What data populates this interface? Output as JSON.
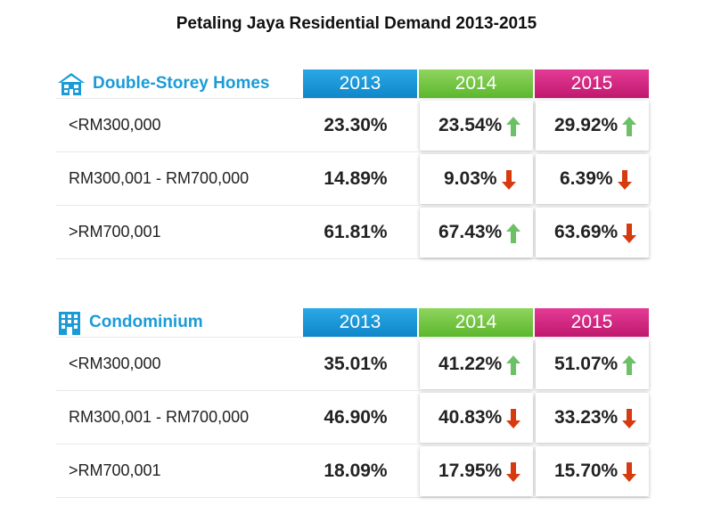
{
  "title": "Petaling Jaya Residential Demand 2013-2015",
  "colors": {
    "accent": "#1a9bd7",
    "year_2013": "#1a93d6",
    "year_2014": "#6cc13b",
    "year_2015": "#d32882",
    "up": "#6cc066",
    "down": "#d73a0f"
  },
  "sections": [
    {
      "label": "Double-Storey Homes",
      "icon": "house-icon",
      "years": [
        "2013",
        "2014",
        "2015"
      ],
      "rows": [
        {
          "label": "<RM300,000",
          "v2013": "23.30%",
          "v2014": "23.54%",
          "t2014": "up",
          "v2015": "29.92%",
          "t2015": "up"
        },
        {
          "label": "RM300,001 - RM700,000",
          "v2013": "14.89%",
          "v2014": "9.03%",
          "t2014": "down",
          "v2015": "6.39%",
          "t2015": "down"
        },
        {
          "label": ">RM700,001",
          "v2013": "61.81%",
          "v2014": "67.43%",
          "t2014": "up",
          "v2015": "63.69%",
          "t2015": "down"
        }
      ]
    },
    {
      "label": "Condominium",
      "icon": "building-icon",
      "years": [
        "2013",
        "2014",
        "2015"
      ],
      "rows": [
        {
          "label": "<RM300,000",
          "v2013": "35.01%",
          "v2014": "41.22%",
          "t2014": "up",
          "v2015": "51.07%",
          "t2015": "up"
        },
        {
          "label": "RM300,001 - RM700,000",
          "v2013": "46.90%",
          "v2014": "40.83%",
          "t2014": "down",
          "v2015": "33.23%",
          "t2015": "down"
        },
        {
          "label": ">RM700,001",
          "v2013": "18.09%",
          "v2014": "17.95%",
          "t2014": "down",
          "v2015": "15.70%",
          "t2015": "down"
        }
      ]
    }
  ],
  "chart_data": {
    "type": "table",
    "title": "Petaling Jaya Residential Demand 2013-2015",
    "columns": [
      "2013",
      "2014",
      "2015"
    ],
    "tables": [
      {
        "name": "Double-Storey Homes",
        "rows": [
          "<RM300,000",
          "RM300,001 - RM700,000",
          ">RM700,001"
        ],
        "values": [
          [
            23.3,
            23.54,
            29.92
          ],
          [
            14.89,
            9.03,
            6.39
          ],
          [
            61.81,
            67.43,
            63.69
          ]
        ],
        "unit": "%"
      },
      {
        "name": "Condominium",
        "rows": [
          "<RM300,000",
          "RM300,001 - RM700,000",
          ">RM700,001"
        ],
        "values": [
          [
            35.01,
            41.22,
            51.07
          ],
          [
            46.9,
            40.83,
            33.23
          ],
          [
            18.09,
            17.95,
            15.7
          ]
        ],
        "unit": "%"
      }
    ]
  }
}
